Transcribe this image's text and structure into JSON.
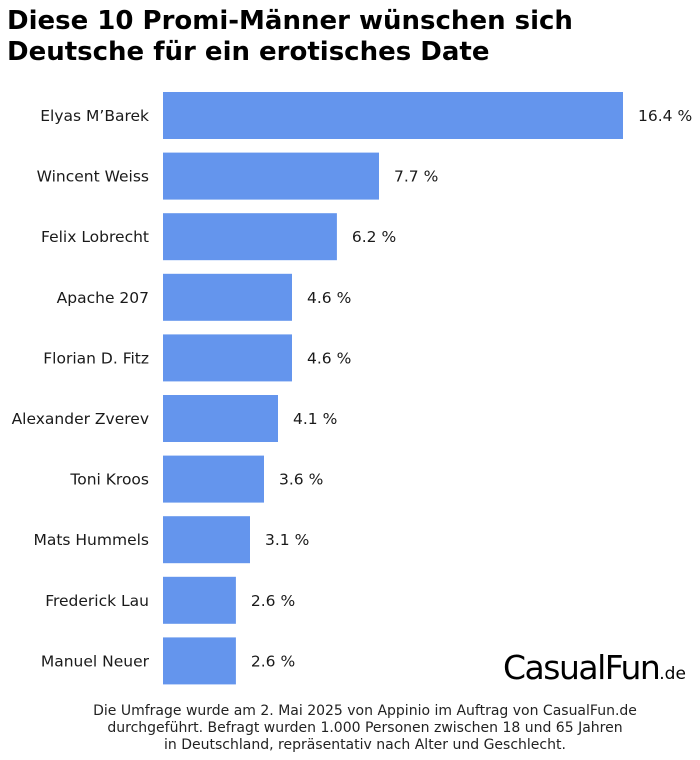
{
  "title": {
    "line1": "Diese 10 Promi-Männer wünschen sich",
    "line2": "Deutsche für ein erotisches Date"
  },
  "bar_color": "#6495ed",
  "chart_data": {
    "type": "bar",
    "orientation": "horizontal",
    "title": "Diese 10 Promi-Männer wünschen sich Deutsche für ein erotisches Date",
    "categories": [
      "Elyas M’Barek",
      "Wincent Weiss",
      "Felix Lobrecht",
      "Apache 207",
      "Florian D. Fitz",
      "Alexander Zverev",
      "Toni Kroos",
      "Mats Hummels",
      "Frederick Lau",
      "Manuel Neuer"
    ],
    "values": [
      16.4,
      7.7,
      6.2,
      4.6,
      4.6,
      4.1,
      3.6,
      3.1,
      2.6,
      2.6
    ],
    "value_labels": [
      "16.4 %",
      "7.7 %",
      "6.2 %",
      "4.6 %",
      "4.6 %",
      "4.1 %",
      "3.6 %",
      "3.1 %",
      "2.6 %",
      "2.6 %"
    ],
    "xlabel": "",
    "ylabel": "",
    "xlim": [
      0,
      16.4
    ],
    "grid": false
  },
  "logo": {
    "main": "CasualFun",
    "tld": ".de"
  },
  "footnote": {
    "line1": "Die Umfrage wurde am 2. Mai 2025 von Appinio im Auftrag von CasualFun.de",
    "line2": "durchgeführt. Befragt wurden 1.000 Personen zwischen 18 und 65 Jahren",
    "line3": "in Deutschland, repräsentativ nach Alter und Geschlecht."
  }
}
